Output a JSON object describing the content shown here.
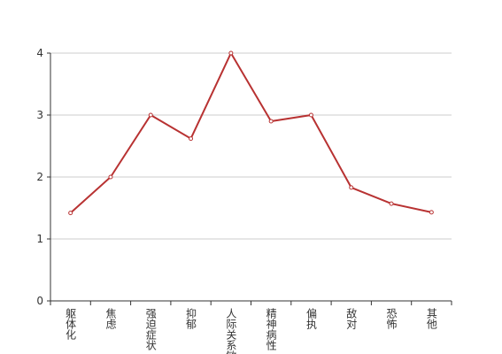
{
  "chart_data": {
    "type": "line",
    "categories": [
      "躯体化",
      "焦虑",
      "强迫症状",
      "抑郁",
      "人际关系敏感",
      "精神病性",
      "偏执",
      "敌对",
      "恐怖",
      "其他"
    ],
    "series": [
      {
        "color": "#b83232",
        "values": [
          1.42,
          2.0,
          3.0,
          2.62,
          4.0,
          2.9,
          3.0,
          1.83,
          1.57,
          1.43
        ]
      }
    ],
    "ylim": [
      0,
      4
    ],
    "yticks": [
      0,
      1,
      2,
      3,
      4
    ],
    "grid": true
  }
}
